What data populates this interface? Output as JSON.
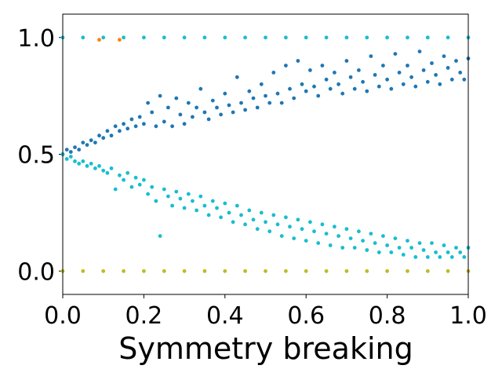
{
  "chart_data": {
    "type": "scatter",
    "title": "",
    "xlabel": "Symmetry breaking",
    "ylabel": "",
    "xlim": [
      0.0,
      1.0
    ],
    "ylim": [
      -0.1,
      1.1
    ],
    "x_ticks": [
      "0.0",
      "0.2",
      "0.4",
      "0.6",
      "0.8",
      "1.0"
    ],
    "x_tick_values": [
      0.0,
      0.2,
      0.4,
      0.6,
      0.8,
      1.0
    ],
    "y_ticks": [
      "0.0",
      "0.5",
      "1.0"
    ],
    "y_tick_values": [
      0.0,
      0.5,
      1.0
    ],
    "grid": false,
    "legend": "none",
    "series": [
      {
        "color": "#1f77b4",
        "points": [
          [
            0.0,
            0.5
          ],
          [
            0.01,
            0.52
          ],
          [
            0.02,
            0.51
          ],
          [
            0.03,
            0.53
          ],
          [
            0.04,
            0.52
          ],
          [
            0.05,
            0.55
          ],
          [
            0.06,
            0.54
          ],
          [
            0.07,
            0.56
          ],
          [
            0.08,
            0.55
          ],
          [
            0.09,
            0.58
          ],
          [
            0.1,
            0.57
          ],
          [
            0.11,
            0.6
          ],
          [
            0.12,
            0.58
          ],
          [
            0.13,
            0.62
          ],
          [
            0.14,
            0.6
          ],
          [
            0.15,
            0.63
          ],
          [
            0.16,
            0.61
          ],
          [
            0.17,
            0.65
          ],
          [
            0.18,
            0.62
          ],
          [
            0.19,
            0.66
          ],
          [
            0.2,
            0.63
          ],
          [
            0.21,
            0.72
          ],
          [
            0.22,
            0.68
          ],
          [
            0.23,
            0.62
          ],
          [
            0.24,
            0.75
          ],
          [
            0.25,
            0.64
          ],
          [
            0.26,
            0.7
          ],
          [
            0.27,
            0.62
          ],
          [
            0.28,
            0.74
          ],
          [
            0.29,
            0.67
          ],
          [
            0.3,
            0.63
          ],
          [
            0.31,
            0.72
          ],
          [
            0.32,
            0.66
          ],
          [
            0.33,
            0.7
          ],
          [
            0.34,
            0.78
          ],
          [
            0.35,
            0.68
          ],
          [
            0.36,
            0.65
          ],
          [
            0.37,
            0.73
          ],
          [
            0.38,
            0.7
          ],
          [
            0.39,
            0.67
          ],
          [
            0.4,
            0.76
          ],
          [
            0.41,
            0.71
          ],
          [
            0.42,
            0.68
          ],
          [
            0.43,
            0.83
          ],
          [
            0.44,
            0.72
          ],
          [
            0.45,
            0.69
          ],
          [
            0.46,
            0.77
          ],
          [
            0.47,
            0.74
          ],
          [
            0.48,
            0.7
          ],
          [
            0.49,
            0.8
          ],
          [
            0.5,
            0.75
          ],
          [
            0.51,
            0.72
          ],
          [
            0.52,
            0.85
          ],
          [
            0.53,
            0.76
          ],
          [
            0.54,
            0.72
          ],
          [
            0.55,
            0.88
          ],
          [
            0.56,
            0.78
          ],
          [
            0.57,
            0.74
          ],
          [
            0.58,
            0.9
          ],
          [
            0.59,
            0.8
          ],
          [
            0.6,
            0.77
          ],
          [
            0.61,
            0.86
          ],
          [
            0.62,
            0.79
          ],
          [
            0.63,
            0.75
          ],
          [
            0.64,
            0.88
          ],
          [
            0.65,
            0.82
          ],
          [
            0.66,
            0.78
          ],
          [
            0.67,
            0.85
          ],
          [
            0.68,
            0.8
          ],
          [
            0.69,
            0.76
          ],
          [
            0.7,
            0.9
          ],
          [
            0.71,
            0.83
          ],
          [
            0.72,
            0.78
          ],
          [
            0.73,
            0.86
          ],
          [
            0.74,
            0.81
          ],
          [
            0.75,
            0.77
          ],
          [
            0.76,
            0.92
          ],
          [
            0.77,
            0.84
          ],
          [
            0.78,
            0.79
          ],
          [
            0.79,
            0.88
          ],
          [
            0.8,
            0.82
          ],
          [
            0.81,
            0.78
          ],
          [
            0.82,
            0.93
          ],
          [
            0.83,
            0.85
          ],
          [
            0.84,
            0.8
          ],
          [
            0.85,
            0.88
          ],
          [
            0.86,
            0.83
          ],
          [
            0.87,
            0.79
          ],
          [
            0.88,
            0.94
          ],
          [
            0.89,
            0.86
          ],
          [
            0.9,
            0.81
          ],
          [
            0.91,
            0.89
          ],
          [
            0.92,
            0.84
          ],
          [
            0.93,
            0.8
          ],
          [
            0.94,
            0.92
          ],
          [
            0.95,
            0.87
          ],
          [
            0.96,
            0.82
          ],
          [
            0.97,
            0.9
          ],
          [
            0.98,
            0.85
          ],
          [
            0.99,
            0.82
          ],
          [
            1.0,
            0.91
          ]
        ]
      },
      {
        "color": "#17becf",
        "points": [
          [
            0.0,
            0.5
          ],
          [
            0.01,
            0.48
          ],
          [
            0.02,
            0.49
          ],
          [
            0.03,
            0.47
          ],
          [
            0.04,
            0.46
          ],
          [
            0.05,
            0.47
          ],
          [
            0.06,
            0.45
          ],
          [
            0.07,
            0.46
          ],
          [
            0.08,
            0.44
          ],
          [
            0.09,
            0.45
          ],
          [
            0.1,
            0.43
          ],
          [
            0.11,
            0.42
          ],
          [
            0.12,
            0.44
          ],
          [
            0.13,
            0.35
          ],
          [
            0.14,
            0.41
          ],
          [
            0.15,
            0.39
          ],
          [
            0.16,
            0.42
          ],
          [
            0.17,
            0.36
          ],
          [
            0.18,
            0.4
          ],
          [
            0.19,
            0.37
          ],
          [
            0.2,
            0.39
          ],
          [
            0.21,
            0.33
          ],
          [
            0.22,
            0.36
          ],
          [
            0.23,
            0.3
          ],
          [
            0.24,
            0.15
          ],
          [
            0.25,
            0.35
          ],
          [
            0.26,
            0.32
          ],
          [
            0.27,
            0.28
          ],
          [
            0.28,
            0.34
          ],
          [
            0.29,
            0.31
          ],
          [
            0.3,
            0.27
          ],
          [
            0.31,
            0.33
          ],
          [
            0.32,
            0.3
          ],
          [
            0.33,
            0.26
          ],
          [
            0.34,
            0.32
          ],
          [
            0.35,
            0.28
          ],
          [
            0.36,
            0.24
          ],
          [
            0.37,
            0.3
          ],
          [
            0.38,
            0.27
          ],
          [
            0.39,
            0.23
          ],
          [
            0.4,
            0.29
          ],
          [
            0.41,
            0.25
          ],
          [
            0.42,
            0.21
          ],
          [
            0.43,
            0.28
          ],
          [
            0.44,
            0.24
          ],
          [
            0.45,
            0.2
          ],
          [
            0.46,
            0.26
          ],
          [
            0.47,
            0.22
          ],
          [
            0.48,
            0.18
          ],
          [
            0.49,
            0.25
          ],
          [
            0.5,
            0.21
          ],
          [
            0.51,
            0.17
          ],
          [
            0.52,
            0.24
          ],
          [
            0.53,
            0.2
          ],
          [
            0.54,
            0.15
          ],
          [
            0.55,
            0.23
          ],
          [
            0.56,
            0.19
          ],
          [
            0.57,
            0.14
          ],
          [
            0.58,
            0.22
          ],
          [
            0.59,
            0.18
          ],
          [
            0.6,
            0.13
          ],
          [
            0.61,
            0.21
          ],
          [
            0.62,
            0.17
          ],
          [
            0.63,
            0.12
          ],
          [
            0.64,
            0.2
          ],
          [
            0.65,
            0.16
          ],
          [
            0.66,
            0.11
          ],
          [
            0.67,
            0.19
          ],
          [
            0.68,
            0.15
          ],
          [
            0.69,
            0.1
          ],
          [
            0.7,
            0.18
          ],
          [
            0.71,
            0.14
          ],
          [
            0.72,
            0.1
          ],
          [
            0.73,
            0.17
          ],
          [
            0.74,
            0.13
          ],
          [
            0.75,
            0.09
          ],
          [
            0.76,
            0.16
          ],
          [
            0.77,
            0.12
          ],
          [
            0.78,
            0.08
          ],
          [
            0.79,
            0.15
          ],
          [
            0.8,
            0.11
          ],
          [
            0.81,
            0.08
          ],
          [
            0.82,
            0.14
          ],
          [
            0.83,
            0.1
          ],
          [
            0.84,
            0.07
          ],
          [
            0.85,
            0.13
          ],
          [
            0.86,
            0.1
          ],
          [
            0.87,
            0.06
          ],
          [
            0.88,
            0.12
          ],
          [
            0.89,
            0.09
          ],
          [
            0.9,
            0.06
          ],
          [
            0.91,
            0.12
          ],
          [
            0.92,
            0.08
          ],
          [
            0.93,
            0.06
          ],
          [
            0.94,
            0.11
          ],
          [
            0.95,
            0.08
          ],
          [
            0.96,
            0.06
          ],
          [
            0.97,
            0.1
          ],
          [
            0.98,
            0.08
          ],
          [
            0.99,
            0.06
          ],
          [
            1.0,
            0.1
          ]
        ]
      },
      {
        "color": "#17becf",
        "points": [
          [
            0.0,
            1.0
          ],
          [
            0.05,
            1.0
          ],
          [
            0.1,
            1.0
          ],
          [
            0.15,
            1.0
          ],
          [
            0.2,
            1.0
          ],
          [
            0.25,
            1.0
          ],
          [
            0.3,
            1.0
          ],
          [
            0.35,
            1.0
          ],
          [
            0.4,
            1.0
          ],
          [
            0.45,
            1.0
          ],
          [
            0.5,
            1.0
          ],
          [
            0.55,
            1.0
          ],
          [
            0.6,
            1.0
          ],
          [
            0.65,
            1.0
          ],
          [
            0.7,
            1.0
          ],
          [
            0.75,
            1.0
          ],
          [
            0.8,
            1.0
          ],
          [
            0.85,
            1.0
          ],
          [
            0.9,
            1.0
          ],
          [
            0.95,
            1.0
          ],
          [
            1.0,
            1.0
          ]
        ]
      },
      {
        "color": "#bcbd22",
        "points": [
          [
            0.0,
            0.0
          ],
          [
            0.05,
            0.0
          ],
          [
            0.1,
            0.0
          ],
          [
            0.15,
            0.0
          ],
          [
            0.2,
            0.0
          ],
          [
            0.25,
            0.0
          ],
          [
            0.3,
            0.0
          ],
          [
            0.35,
            0.0
          ],
          [
            0.4,
            0.0
          ],
          [
            0.45,
            0.0
          ],
          [
            0.5,
            0.0
          ],
          [
            0.55,
            0.0
          ],
          [
            0.6,
            0.0
          ],
          [
            0.65,
            0.0
          ],
          [
            0.7,
            0.0
          ],
          [
            0.75,
            0.0
          ],
          [
            0.8,
            0.0
          ],
          [
            0.85,
            0.0
          ],
          [
            0.9,
            0.0
          ],
          [
            0.95,
            0.0
          ],
          [
            1.0,
            0.0
          ]
        ]
      },
      {
        "color": "#ff7f0e",
        "points": [
          [
            0.09,
            0.99
          ],
          [
            0.14,
            0.99
          ]
        ]
      }
    ]
  }
}
